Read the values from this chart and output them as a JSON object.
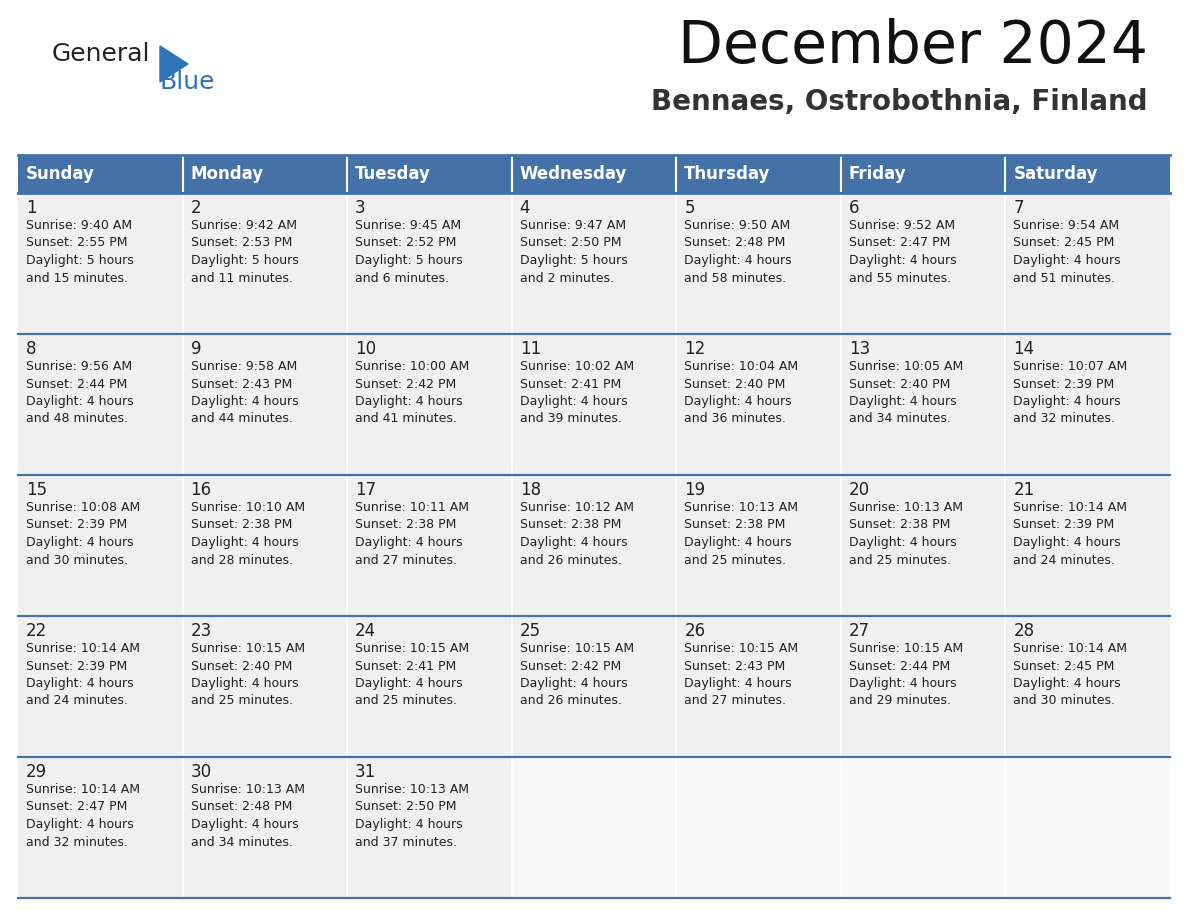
{
  "title": "December 2024",
  "subtitle": "Bennaes, Ostrobothnia, Finland",
  "header_color": "#4472a8",
  "header_text_color": "#ffffff",
  "cell_bg": "#f0f0f0",
  "cell_bg_empty": "#f8f8f8",
  "day_names": [
    "Sunday",
    "Monday",
    "Tuesday",
    "Wednesday",
    "Thursday",
    "Friday",
    "Saturday"
  ],
  "weeks": [
    [
      {
        "day": 1,
        "sunrise": "9:40 AM",
        "sunset": "2:55 PM",
        "daylight": "5 hours\nand 15 minutes."
      },
      {
        "day": 2,
        "sunrise": "9:42 AM",
        "sunset": "2:53 PM",
        "daylight": "5 hours\nand 11 minutes."
      },
      {
        "day": 3,
        "sunrise": "9:45 AM",
        "sunset": "2:52 PM",
        "daylight": "5 hours\nand 6 minutes."
      },
      {
        "day": 4,
        "sunrise": "9:47 AM",
        "sunset": "2:50 PM",
        "daylight": "5 hours\nand 2 minutes."
      },
      {
        "day": 5,
        "sunrise": "9:50 AM",
        "sunset": "2:48 PM",
        "daylight": "4 hours\nand 58 minutes."
      },
      {
        "day": 6,
        "sunrise": "9:52 AM",
        "sunset": "2:47 PM",
        "daylight": "4 hours\nand 55 minutes."
      },
      {
        "day": 7,
        "sunrise": "9:54 AM",
        "sunset": "2:45 PM",
        "daylight": "4 hours\nand 51 minutes."
      }
    ],
    [
      {
        "day": 8,
        "sunrise": "9:56 AM",
        "sunset": "2:44 PM",
        "daylight": "4 hours\nand 48 minutes."
      },
      {
        "day": 9,
        "sunrise": "9:58 AM",
        "sunset": "2:43 PM",
        "daylight": "4 hours\nand 44 minutes."
      },
      {
        "day": 10,
        "sunrise": "10:00 AM",
        "sunset": "2:42 PM",
        "daylight": "4 hours\nand 41 minutes."
      },
      {
        "day": 11,
        "sunrise": "10:02 AM",
        "sunset": "2:41 PM",
        "daylight": "4 hours\nand 39 minutes."
      },
      {
        "day": 12,
        "sunrise": "10:04 AM",
        "sunset": "2:40 PM",
        "daylight": "4 hours\nand 36 minutes."
      },
      {
        "day": 13,
        "sunrise": "10:05 AM",
        "sunset": "2:40 PM",
        "daylight": "4 hours\nand 34 minutes."
      },
      {
        "day": 14,
        "sunrise": "10:07 AM",
        "sunset": "2:39 PM",
        "daylight": "4 hours\nand 32 minutes."
      }
    ],
    [
      {
        "day": 15,
        "sunrise": "10:08 AM",
        "sunset": "2:39 PM",
        "daylight": "4 hours\nand 30 minutes."
      },
      {
        "day": 16,
        "sunrise": "10:10 AM",
        "sunset": "2:38 PM",
        "daylight": "4 hours\nand 28 minutes."
      },
      {
        "day": 17,
        "sunrise": "10:11 AM",
        "sunset": "2:38 PM",
        "daylight": "4 hours\nand 27 minutes."
      },
      {
        "day": 18,
        "sunrise": "10:12 AM",
        "sunset": "2:38 PM",
        "daylight": "4 hours\nand 26 minutes."
      },
      {
        "day": 19,
        "sunrise": "10:13 AM",
        "sunset": "2:38 PM",
        "daylight": "4 hours\nand 25 minutes."
      },
      {
        "day": 20,
        "sunrise": "10:13 AM",
        "sunset": "2:38 PM",
        "daylight": "4 hours\nand 25 minutes."
      },
      {
        "day": 21,
        "sunrise": "10:14 AM",
        "sunset": "2:39 PM",
        "daylight": "4 hours\nand 24 minutes."
      }
    ],
    [
      {
        "day": 22,
        "sunrise": "10:14 AM",
        "sunset": "2:39 PM",
        "daylight": "4 hours\nand 24 minutes."
      },
      {
        "day": 23,
        "sunrise": "10:15 AM",
        "sunset": "2:40 PM",
        "daylight": "4 hours\nand 25 minutes."
      },
      {
        "day": 24,
        "sunrise": "10:15 AM",
        "sunset": "2:41 PM",
        "daylight": "4 hours\nand 25 minutes."
      },
      {
        "day": 25,
        "sunrise": "10:15 AM",
        "sunset": "2:42 PM",
        "daylight": "4 hours\nand 26 minutes."
      },
      {
        "day": 26,
        "sunrise": "10:15 AM",
        "sunset": "2:43 PM",
        "daylight": "4 hours\nand 27 minutes."
      },
      {
        "day": 27,
        "sunrise": "10:15 AM",
        "sunset": "2:44 PM",
        "daylight": "4 hours\nand 29 minutes."
      },
      {
        "day": 28,
        "sunrise": "10:14 AM",
        "sunset": "2:45 PM",
        "daylight": "4 hours\nand 30 minutes."
      }
    ],
    [
      {
        "day": 29,
        "sunrise": "10:14 AM",
        "sunset": "2:47 PM",
        "daylight": "4 hours\nand 32 minutes."
      },
      {
        "day": 30,
        "sunrise": "10:13 AM",
        "sunset": "2:48 PM",
        "daylight": "4 hours\nand 34 minutes."
      },
      {
        "day": 31,
        "sunrise": "10:13 AM",
        "sunset": "2:50 PM",
        "daylight": "4 hours\nand 37 minutes."
      },
      null,
      null,
      null,
      null
    ]
  ],
  "title_fontsize": 42,
  "subtitle_fontsize": 20,
  "header_fontsize": 12,
  "day_num_fontsize": 12,
  "cell_text_fontsize": 9,
  "separator_line_color": "#4472a8",
  "text_color": "#222222",
  "logo_general_color": "#222222",
  "logo_blue_color": "#2e75b6",
  "logo_triangle_color": "#2e75b6"
}
